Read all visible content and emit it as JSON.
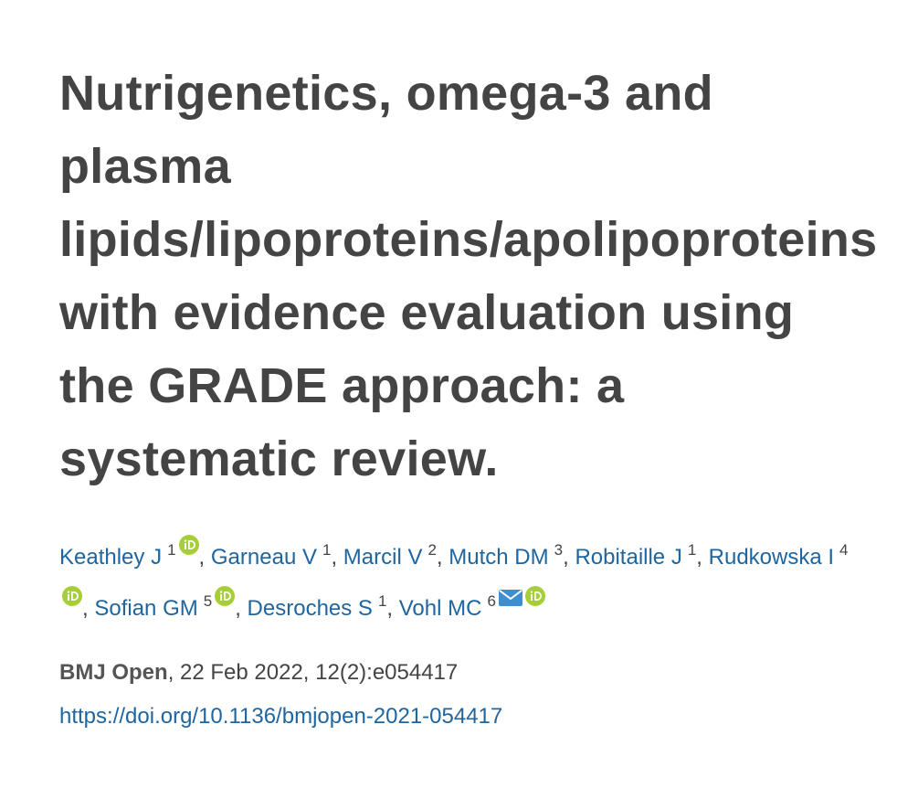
{
  "title": "Nutrigenetics, omega-3 and plasma lipids/lipoproteins/apolipoproteins with evidence evaluation using the GRADE approach: a systematic review.",
  "authors_separator": ",",
  "authors": [
    {
      "name": "Keathley J",
      "affiliation": 1,
      "orcid": true,
      "email": false
    },
    {
      "name": "Garneau V",
      "affiliation": 1,
      "orcid": false,
      "email": false
    },
    {
      "name": "Marcil V",
      "affiliation": 2,
      "orcid": false,
      "email": false
    },
    {
      "name": "Mutch DM",
      "affiliation": 3,
      "orcid": false,
      "email": false
    },
    {
      "name": "Robitaille J",
      "affiliation": 1,
      "orcid": false,
      "email": false
    },
    {
      "name": "Rudkowska I",
      "affiliation": 4,
      "orcid": true,
      "email": false
    },
    {
      "name": "Sofian GM",
      "affiliation": 5,
      "orcid": true,
      "email": false
    },
    {
      "name": "Desroches S",
      "affiliation": 1,
      "orcid": false,
      "email": false
    },
    {
      "name": "Vohl MC",
      "affiliation": 6,
      "orcid": true,
      "email": true
    }
  ],
  "source": {
    "journal": "BMJ Open",
    "details": ", 22 Feb 2022, 12(2):e054417"
  },
  "doi": "https://doi.org/10.1136/bmjopen-2021-054417"
}
